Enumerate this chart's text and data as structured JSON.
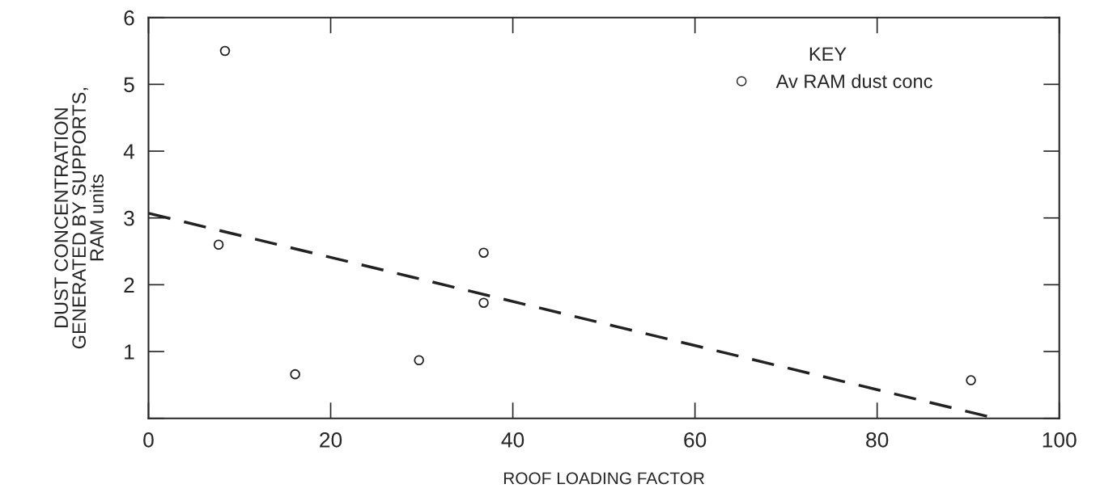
{
  "chart_data": {
    "type": "scatter",
    "xlabel": "ROOF LOADING FACTOR",
    "ylabel": "DUST CONCENTRATION\nGENERATED BY SUPPORTS,\nRAM units",
    "legend_title": "KEY",
    "series": [
      {
        "name": "Av RAM dust conc",
        "color": "#222222",
        "marker": "circle",
        "x": [
          8.4,
          7.7,
          16.1,
          29.7,
          36.8,
          36.8,
          90.3
        ],
        "values": [
          5.5,
          2.6,
          0.66,
          0.87,
          2.48,
          1.73,
          0.57
        ]
      },
      {
        "type": "line",
        "color": "#222222",
        "line_style": "dashed",
        "marker": "none",
        "x": [
          0,
          93
        ],
        "values": [
          3.07,
          0
        ]
      }
    ],
    "xlim": [
      0,
      100
    ],
    "ylim": [
      0,
      6
    ],
    "xticks": [
      0,
      20,
      40,
      60,
      80,
      100
    ],
    "yticks": [
      {
        "value": 0,
        "label": null
      },
      1,
      2,
      3,
      4,
      5,
      6
    ],
    "grid": false,
    "legend": "top right"
  }
}
